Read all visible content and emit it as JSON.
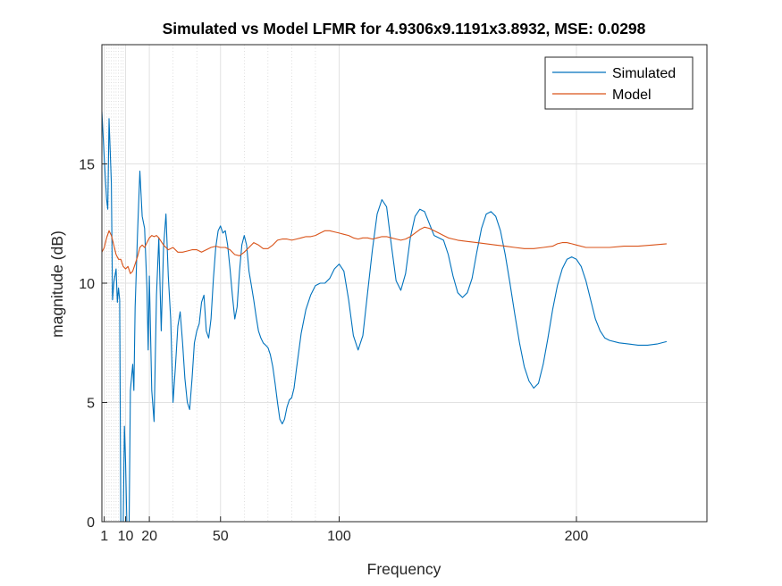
{
  "chart_data": {
    "type": "line",
    "title": "Simulated vs Model LFMR for 4.9306x9.1191x3.8932, MSE: 0.0298",
    "xlabel": "Frequency",
    "ylabel": "magnitude (dB)",
    "xlim": [
      0,
      255
    ],
    "ylim": [
      0,
      20
    ],
    "xticks": [
      1,
      10,
      20,
      50,
      100,
      200
    ],
    "xtick_labels": [
      "1",
      "10",
      "20",
      "50",
      "100",
      "200"
    ],
    "yticks": [
      0,
      5,
      10,
      15
    ],
    "ytick_labels": [
      "0",
      "5",
      "10",
      "15"
    ],
    "grid": true,
    "minor_x_grid": [
      2,
      3,
      4,
      5,
      6,
      7,
      8,
      9,
      30,
      40,
      60,
      70,
      80,
      90
    ],
    "legend_position": "top-right",
    "series": [
      {
        "name": "Simulated",
        "color": "#0072BD",
        "points": [
          [
            0,
            17.2
          ],
          [
            1,
            15.2
          ],
          [
            2,
            13.5
          ],
          [
            2.5,
            13.1
          ],
          [
            3,
            16.9
          ],
          [
            4,
            14.2
          ],
          [
            4.5,
            9.3
          ],
          [
            5,
            10.0
          ],
          [
            6,
            10.6
          ],
          [
            6.5,
            9.2
          ],
          [
            7,
            9.8
          ],
          [
            7.5,
            9.3
          ],
          [
            8,
            0
          ],
          [
            9,
            0
          ],
          [
            9.5,
            4.0
          ],
          [
            10,
            2.5
          ],
          [
            10.5,
            0
          ],
          [
            11.5,
            0
          ],
          [
            12,
            5.5
          ],
          [
            13,
            6.6
          ],
          [
            13.5,
            5.5
          ],
          [
            14,
            9.0
          ],
          [
            15,
            12.0
          ],
          [
            16,
            14.7
          ],
          [
            17,
            12.8
          ],
          [
            18,
            12.3
          ],
          [
            19,
            9.8
          ],
          [
            19.5,
            7.2
          ],
          [
            20,
            10.3
          ],
          [
            21,
            5.5
          ],
          [
            22,
            4.2
          ],
          [
            23,
            9.5
          ],
          [
            24,
            11.9
          ],
          [
            25,
            8.0
          ],
          [
            26,
            11.5
          ],
          [
            27,
            12.9
          ],
          [
            28,
            10.3
          ],
          [
            29,
            8.5
          ],
          [
            30,
            5.0
          ],
          [
            31,
            6.5
          ],
          [
            32,
            8.2
          ],
          [
            33,
            8.8
          ],
          [
            34,
            7.5
          ],
          [
            35,
            6.0
          ],
          [
            36,
            5.0
          ],
          [
            37,
            4.7
          ],
          [
            38,
            6.0
          ],
          [
            39,
            7.5
          ],
          [
            40,
            8.0
          ],
          [
            41,
            8.3
          ],
          [
            42,
            9.2
          ],
          [
            43,
            9.5
          ],
          [
            44,
            8.0
          ],
          [
            45,
            7.7
          ],
          [
            46,
            8.5
          ],
          [
            47,
            10.2
          ],
          [
            48,
            11.5
          ],
          [
            49,
            12.2
          ],
          [
            50,
            12.4
          ],
          [
            51,
            12.1
          ],
          [
            52,
            12.2
          ],
          [
            53,
            11.6
          ],
          [
            54,
            10.6
          ],
          [
            55,
            9.5
          ],
          [
            56,
            8.5
          ],
          [
            57,
            9.0
          ],
          [
            58,
            10.5
          ],
          [
            59,
            11.6
          ],
          [
            60,
            12.0
          ],
          [
            61,
            11.6
          ],
          [
            62,
            10.5
          ],
          [
            63,
            9.9
          ],
          [
            64,
            9.3
          ],
          [
            65,
            8.6
          ],
          [
            66,
            8.0
          ],
          [
            67,
            7.7
          ],
          [
            68,
            7.5
          ],
          [
            69,
            7.4
          ],
          [
            70,
            7.3
          ],
          [
            71,
            7.0
          ],
          [
            72,
            6.5
          ],
          [
            73,
            5.8
          ],
          [
            74,
            5.0
          ],
          [
            75,
            4.3
          ],
          [
            76,
            4.1
          ],
          [
            77,
            4.3
          ],
          [
            78,
            4.8
          ],
          [
            79,
            5.1
          ],
          [
            80,
            5.2
          ],
          [
            81,
            5.6
          ],
          [
            82,
            6.4
          ],
          [
            84,
            7.9
          ],
          [
            86,
            8.9
          ],
          [
            88,
            9.5
          ],
          [
            90,
            9.9
          ],
          [
            92,
            10.0
          ],
          [
            94,
            10.0
          ],
          [
            96,
            10.2
          ],
          [
            98,
            10.6
          ],
          [
            100,
            10.8
          ],
          [
            102,
            10.5
          ],
          [
            104,
            9.3
          ],
          [
            106,
            7.8
          ],
          [
            108,
            7.2
          ],
          [
            110,
            7.8
          ],
          [
            112,
            9.6
          ],
          [
            114,
            11.4
          ],
          [
            116,
            12.9
          ],
          [
            118,
            13.5
          ],
          [
            120,
            13.2
          ],
          [
            122,
            11.6
          ],
          [
            124,
            10.1
          ],
          [
            126,
            9.7
          ],
          [
            128,
            10.4
          ],
          [
            130,
            11.9
          ],
          [
            132,
            12.8
          ],
          [
            134,
            13.1
          ],
          [
            136,
            13.0
          ],
          [
            138,
            12.5
          ],
          [
            140,
            12.0
          ],
          [
            142,
            11.9
          ],
          [
            144,
            11.8
          ],
          [
            146,
            11.2
          ],
          [
            148,
            10.3
          ],
          [
            150,
            9.6
          ],
          [
            152,
            9.4
          ],
          [
            154,
            9.6
          ],
          [
            156,
            10.2
          ],
          [
            158,
            11.3
          ],
          [
            160,
            12.3
          ],
          [
            162,
            12.9
          ],
          [
            164,
            13.0
          ],
          [
            166,
            12.8
          ],
          [
            168,
            12.2
          ],
          [
            170,
            11.2
          ],
          [
            172,
            10.0
          ],
          [
            174,
            8.7
          ],
          [
            176,
            7.5
          ],
          [
            178,
            6.5
          ],
          [
            180,
            5.9
          ],
          [
            182,
            5.6
          ],
          [
            184,
            5.8
          ],
          [
            186,
            6.6
          ],
          [
            188,
            7.7
          ],
          [
            190,
            8.9
          ],
          [
            192,
            9.9
          ],
          [
            194,
            10.6
          ],
          [
            196,
            11.0
          ],
          [
            198,
            11.1
          ],
          [
            200,
            11.0
          ],
          [
            202,
            10.7
          ],
          [
            204,
            10.1
          ],
          [
            206,
            9.3
          ],
          [
            208,
            8.5
          ],
          [
            210,
            8.0
          ],
          [
            212,
            7.7
          ],
          [
            214,
            7.6
          ],
          [
            218,
            7.5
          ],
          [
            222,
            7.45
          ],
          [
            226,
            7.4
          ],
          [
            230,
            7.4
          ],
          [
            234,
            7.45
          ],
          [
            238,
            7.55
          ]
        ]
      },
      {
        "name": "Model",
        "color": "#D95319",
        "points": [
          [
            0,
            11.3
          ],
          [
            1,
            11.5
          ],
          [
            2,
            11.9
          ],
          [
            3,
            12.2
          ],
          [
            4,
            12.0
          ],
          [
            5,
            11.6
          ],
          [
            6,
            11.2
          ],
          [
            7,
            11.0
          ],
          [
            8,
            11.0
          ],
          [
            9,
            10.7
          ],
          [
            10,
            10.6
          ],
          [
            11,
            10.7
          ],
          [
            12,
            10.4
          ],
          [
            13,
            10.5
          ],
          [
            14,
            10.8
          ],
          [
            15,
            11.1
          ],
          [
            16,
            11.5
          ],
          [
            17,
            11.6
          ],
          [
            18,
            11.5
          ],
          [
            19,
            11.7
          ],
          [
            20,
            11.9
          ],
          [
            21,
            12.0
          ],
          [
            22,
            11.95
          ],
          [
            23,
            12.0
          ],
          [
            24,
            11.9
          ],
          [
            26,
            11.6
          ],
          [
            28,
            11.4
          ],
          [
            30,
            11.5
          ],
          [
            32,
            11.3
          ],
          [
            34,
            11.3
          ],
          [
            36,
            11.35
          ],
          [
            38,
            11.4
          ],
          [
            40,
            11.4
          ],
          [
            42,
            11.3
          ],
          [
            44,
            11.4
          ],
          [
            46,
            11.5
          ],
          [
            48,
            11.55
          ],
          [
            50,
            11.5
          ],
          [
            52,
            11.5
          ],
          [
            54,
            11.4
          ],
          [
            56,
            11.2
          ],
          [
            58,
            11.15
          ],
          [
            60,
            11.3
          ],
          [
            62,
            11.5
          ],
          [
            64,
            11.7
          ],
          [
            66,
            11.6
          ],
          [
            68,
            11.45
          ],
          [
            70,
            11.45
          ],
          [
            72,
            11.6
          ],
          [
            74,
            11.8
          ],
          [
            76,
            11.85
          ],
          [
            78,
            11.85
          ],
          [
            80,
            11.8
          ],
          [
            82,
            11.85
          ],
          [
            84,
            11.9
          ],
          [
            86,
            11.95
          ],
          [
            88,
            11.95
          ],
          [
            90,
            12.0
          ],
          [
            92,
            12.1
          ],
          [
            94,
            12.2
          ],
          [
            96,
            12.2
          ],
          [
            98,
            12.15
          ],
          [
            100,
            12.1
          ],
          [
            102,
            12.05
          ],
          [
            104,
            12.0
          ],
          [
            106,
            11.9
          ],
          [
            108,
            11.85
          ],
          [
            110,
            11.9
          ],
          [
            112,
            11.9
          ],
          [
            114,
            11.85
          ],
          [
            116,
            11.9
          ],
          [
            118,
            11.95
          ],
          [
            120,
            11.95
          ],
          [
            122,
            11.9
          ],
          [
            124,
            11.85
          ],
          [
            126,
            11.8
          ],
          [
            128,
            11.85
          ],
          [
            130,
            11.95
          ],
          [
            132,
            12.1
          ],
          [
            134,
            12.25
          ],
          [
            136,
            12.35
          ],
          [
            138,
            12.3
          ],
          [
            140,
            12.2
          ],
          [
            142,
            12.1
          ],
          [
            144,
            12.0
          ],
          [
            146,
            11.9
          ],
          [
            148,
            11.85
          ],
          [
            150,
            11.8
          ],
          [
            154,
            11.75
          ],
          [
            158,
            11.7
          ],
          [
            162,
            11.65
          ],
          [
            166,
            11.6
          ],
          [
            170,
            11.55
          ],
          [
            174,
            11.5
          ],
          [
            178,
            11.45
          ],
          [
            182,
            11.45
          ],
          [
            186,
            11.5
          ],
          [
            190,
            11.55
          ],
          [
            192,
            11.65
          ],
          [
            194,
            11.7
          ],
          [
            196,
            11.7
          ],
          [
            198,
            11.65
          ],
          [
            200,
            11.6
          ],
          [
            204,
            11.5
          ],
          [
            208,
            11.5
          ],
          [
            214,
            11.5
          ],
          [
            220,
            11.55
          ],
          [
            226,
            11.55
          ],
          [
            232,
            11.6
          ],
          [
            238,
            11.65
          ]
        ]
      }
    ]
  }
}
